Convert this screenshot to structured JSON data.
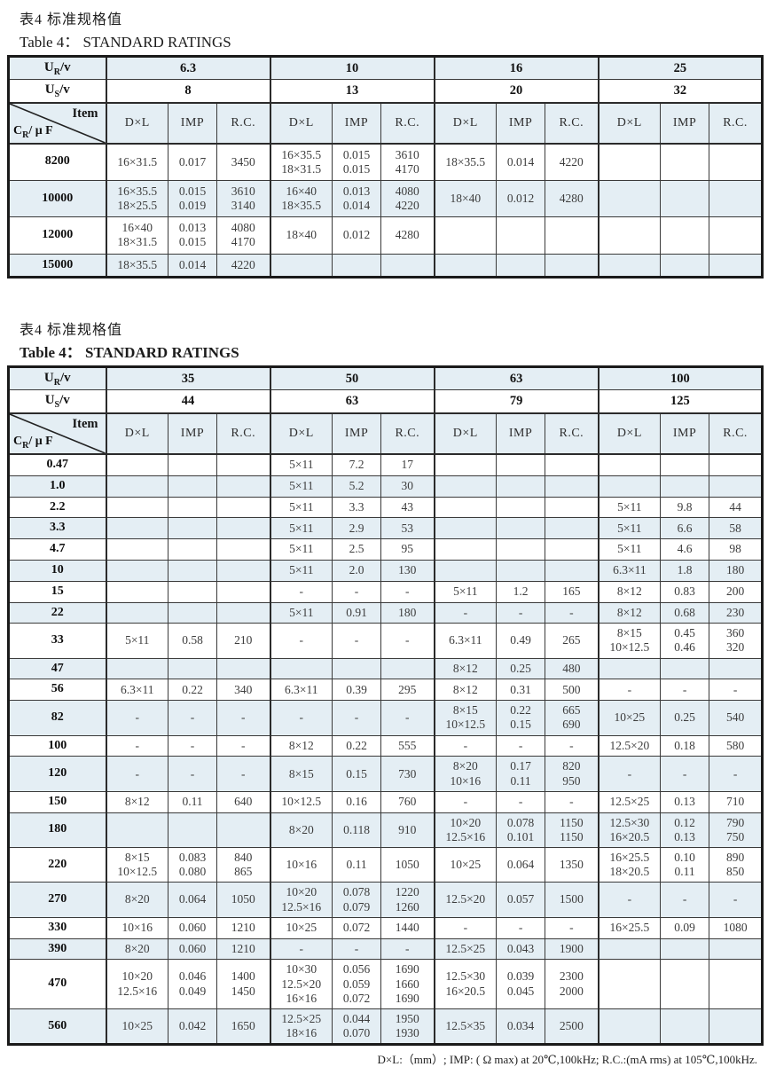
{
  "footer_note": "D×L:（mm）; IMP: ( Ω max) at 20℃,100kHz; R.C.:(mA rms) at 105℃,100kHz.",
  "header_labels": {
    "ur_main": "U",
    "ur_sub": "R",
    "ur_rest": "/v",
    "us_main": "U",
    "us_sub": "S",
    "us_rest": "/v",
    "item_top": "Item",
    "cr_main": "C",
    "cr_sub": "R",
    "cr_rest": "/ μ F",
    "cols": [
      "D×L",
      "IMP",
      "R.C."
    ]
  },
  "tables": [
    {
      "title_zh": "表4  标准规格值",
      "title_en_label": "Table 4：",
      "title_en_text": "STANDARD RATINGS",
      "groups": [
        {
          "ur": "6.3",
          "us": "8"
        },
        {
          "ur": "10",
          "us": "13"
        },
        {
          "ur": "16",
          "us": "20"
        },
        {
          "ur": "25",
          "us": "32"
        }
      ],
      "rows": [
        {
          "cap": "8200",
          "cells": [
            [
              "16×31.5",
              "0.017",
              "3450"
            ],
            [
              "16×35.5\n18×31.5",
              "0.015\n0.015",
              "3610\n4170"
            ],
            [
              "18×35.5",
              "0.014",
              "4220"
            ],
            [
              "",
              "",
              ""
            ]
          ]
        },
        {
          "cap": "10000",
          "cells": [
            [
              "16×35.5\n18×25.5",
              "0.015\n0.019",
              "3610\n3140"
            ],
            [
              "16×40\n18×35.5",
              "0.013\n0.014",
              "4080\n4220"
            ],
            [
              "18×40",
              "0.012",
              "4280"
            ],
            [
              "",
              "",
              ""
            ]
          ]
        },
        {
          "cap": "12000",
          "cells": [
            [
              "16×40\n18×31.5",
              "0.013\n0.015",
              "4080\n4170"
            ],
            [
              "18×40",
              "0.012",
              "4280"
            ],
            [
              "",
              "",
              ""
            ],
            [
              "",
              "",
              ""
            ]
          ]
        },
        {
          "cap": "15000",
          "cells": [
            [
              "18×35.5",
              "0.014",
              "4220"
            ],
            [
              "",
              "",
              ""
            ],
            [
              "",
              "",
              ""
            ],
            [
              "",
              "",
              ""
            ]
          ]
        }
      ]
    },
    {
      "title_zh": "表4  标准规格值",
      "title_en_label": "Table 4：",
      "title_en_text": "STANDARD RATINGS",
      "groups": [
        {
          "ur": "35",
          "us": "44"
        },
        {
          "ur": "50",
          "us": "63"
        },
        {
          "ur": "63",
          "us": "79"
        },
        {
          "ur": "100",
          "us": "125"
        }
      ],
      "rows": [
        {
          "cap": "0.47",
          "cells": [
            [
              "",
              "",
              ""
            ],
            [
              "5×11",
              "7.2",
              "17"
            ],
            [
              "",
              "",
              ""
            ],
            [
              "",
              "",
              ""
            ]
          ]
        },
        {
          "cap": "1.0",
          "cells": [
            [
              "",
              "",
              ""
            ],
            [
              "5×11",
              "5.2",
              "30"
            ],
            [
              "",
              "",
              ""
            ],
            [
              "",
              "",
              ""
            ]
          ]
        },
        {
          "cap": "2.2",
          "cells": [
            [
              "",
              "",
              ""
            ],
            [
              "5×11",
              "3.3",
              "43"
            ],
            [
              "",
              "",
              ""
            ],
            [
              "5×11",
              "9.8",
              "44"
            ]
          ]
        },
        {
          "cap": "3.3",
          "cells": [
            [
              "",
              "",
              ""
            ],
            [
              "5×11",
              "2.9",
              "53"
            ],
            [
              "",
              "",
              ""
            ],
            [
              "5×11",
              "6.6",
              "58"
            ]
          ]
        },
        {
          "cap": "4.7",
          "cells": [
            [
              "",
              "",
              ""
            ],
            [
              "5×11",
              "2.5",
              "95"
            ],
            [
              "",
              "",
              ""
            ],
            [
              "5×11",
              "4.6",
              "98"
            ]
          ]
        },
        {
          "cap": "10",
          "cells": [
            [
              "",
              "",
              ""
            ],
            [
              "5×11",
              "2.0",
              "130"
            ],
            [
              "",
              "",
              ""
            ],
            [
              "6.3×11",
              "1.8",
              "180"
            ]
          ]
        },
        {
          "cap": "15",
          "cells": [
            [
              "",
              "",
              ""
            ],
            [
              "-",
              "-",
              "-"
            ],
            [
              "5×11",
              "1.2",
              "165"
            ],
            [
              "8×12",
              "0.83",
              "200"
            ]
          ]
        },
        {
          "cap": "22",
          "cells": [
            [
              "",
              "",
              ""
            ],
            [
              "5×11",
              "0.91",
              "180"
            ],
            [
              "-",
              "-",
              "-"
            ],
            [
              "8×12",
              "0.68",
              "230"
            ]
          ]
        },
        {
          "cap": "33",
          "cells": [
            [
              "5×11",
              "0.58",
              "210"
            ],
            [
              "-",
              "-",
              "-"
            ],
            [
              "6.3×11",
              "0.49",
              "265"
            ],
            [
              "8×15\n10×12.5",
              "0.45\n0.46",
              "360\n320"
            ]
          ]
        },
        {
          "cap": "47",
          "cells": [
            [
              "",
              "",
              ""
            ],
            [
              "",
              "",
              ""
            ],
            [
              "8×12",
              "0.25",
              "480"
            ],
            [
              "",
              "",
              ""
            ]
          ]
        },
        {
          "cap": "56",
          "cells": [
            [
              "6.3×11",
              "0.22",
              "340"
            ],
            [
              "6.3×11",
              "0.39",
              "295"
            ],
            [
              "8×12",
              "0.31",
              "500"
            ],
            [
              "-",
              "-",
              "-"
            ]
          ]
        },
        {
          "cap": "82",
          "cells": [
            [
              "-",
              "-",
              "-"
            ],
            [
              "-",
              "-",
              "-"
            ],
            [
              "8×15\n10×12.5",
              "0.22\n0.15",
              "665\n690"
            ],
            [
              "10×25",
              "0.25",
              "540"
            ]
          ]
        },
        {
          "cap": "100",
          "cells": [
            [
              "-",
              "-",
              "-"
            ],
            [
              "8×12",
              "0.22",
              "555"
            ],
            [
              "-",
              "-",
              "-"
            ],
            [
              "12.5×20",
              "0.18",
              "580"
            ]
          ]
        },
        {
          "cap": "120",
          "cells": [
            [
              "-",
              "-",
              "-"
            ],
            [
              "8×15",
              "0.15",
              "730"
            ],
            [
              "8×20\n10×16",
              "0.17\n0.11",
              "820\n950"
            ],
            [
              "-",
              "-",
              "-"
            ]
          ]
        },
        {
          "cap": "150",
          "cells": [
            [
              "8×12",
              "0.11",
              "640"
            ],
            [
              "10×12.5",
              "0.16",
              "760"
            ],
            [
              "-",
              "-",
              "-"
            ],
            [
              "12.5×25",
              "0.13",
              "710"
            ]
          ]
        },
        {
          "cap": "180",
          "cells": [
            [
              "",
              "",
              ""
            ],
            [
              "8×20",
              "0.118",
              "910"
            ],
            [
              "10×20\n12.5×16",
              "0.078\n0.101",
              "1150\n1150"
            ],
            [
              "12.5×30\n16×20.5",
              "0.12\n0.13",
              "790\n750"
            ]
          ]
        },
        {
          "cap": "220",
          "cells": [
            [
              "8×15\n10×12.5",
              "0.083\n0.080",
              "840\n865"
            ],
            [
              "10×16",
              "0.11",
              "1050"
            ],
            [
              "10×25",
              "0.064",
              "1350"
            ],
            [
              "16×25.5\n18×20.5",
              "0.10\n0.11",
              "890\n850"
            ]
          ]
        },
        {
          "cap": "270",
          "cells": [
            [
              "8×20",
              "0.064",
              "1050"
            ],
            [
              "10×20\n12.5×16",
              "0.078\n0.079",
              "1220\n1260"
            ],
            [
              "12.5×20",
              "0.057",
              "1500"
            ],
            [
              "-",
              "-",
              "-"
            ]
          ]
        },
        {
          "cap": "330",
          "cells": [
            [
              "10×16",
              "0.060",
              "1210"
            ],
            [
              "10×25",
              "0.072",
              "1440"
            ],
            [
              "-",
              "-",
              "-"
            ],
            [
              "16×25.5",
              "0.09",
              "1080"
            ]
          ]
        },
        {
          "cap": "390",
          "cells": [
            [
              "8×20",
              "0.060",
              "1210"
            ],
            [
              "-",
              "-",
              "-"
            ],
            [
              "12.5×25",
              "0.043",
              "1900"
            ],
            [
              "",
              "",
              ""
            ]
          ]
        },
        {
          "cap": "470",
          "cells": [
            [
              "10×20\n12.5×16",
              "0.046\n0.049",
              "1400\n1450"
            ],
            [
              "10×30\n12.5×20\n16×16",
              "0.056\n0.059\n0.072",
              "1690\n1660\n1690"
            ],
            [
              "12.5×30\n16×20.5",
              "0.039\n0.045",
              "2300\n2000"
            ],
            [
              "",
              "",
              ""
            ]
          ]
        },
        {
          "cap": "560",
          "cells": [
            [
              "10×25",
              "0.042",
              "1650"
            ],
            [
              "12.5×25\n18×16",
              "0.044\n0.070",
              "1950\n1930"
            ],
            [
              "12.5×35",
              "0.034",
              "2500"
            ],
            [
              "",
              "",
              ""
            ]
          ]
        }
      ]
    }
  ]
}
